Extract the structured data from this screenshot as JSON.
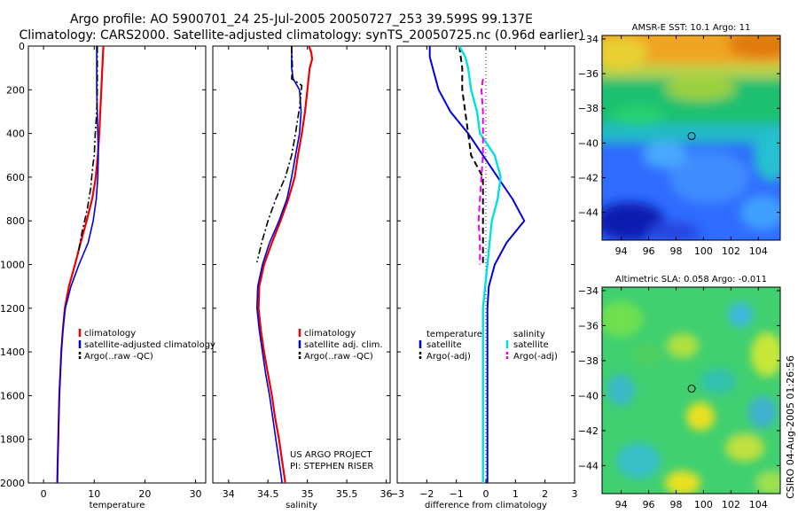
{
  "header": {
    "line1": "Argo profile: AO 5900701_24 25-Jul-2005 20050727_253 39.599S 99.137E",
    "line2": "Climatology: CARS2000. Satellite-adjusted climatology: synTS_20050725.nc (0.96d earlier)"
  },
  "credit": "CSIRO 04-Aug-2005 01:26:56",
  "colors": {
    "red": "#ee0000",
    "blue": "#0000dd",
    "black": "#000000",
    "cyan": "#00e0e0",
    "magenta": "#ee00ee"
  },
  "chart_data": [
    {
      "id": "temperature",
      "type": "line",
      "xlabel": "temperature",
      "xlim": [
        -3,
        32
      ],
      "ylim": [
        2000,
        0
      ],
      "xticks": [
        0,
        10,
        20,
        30
      ],
      "yticks": [
        0,
        200,
        400,
        600,
        800,
        1000,
        1200,
        1400,
        1600,
        1800,
        2000
      ],
      "series": [
        {
          "name": "climatology",
          "color": "#ee0000",
          "style": "solid",
          "width": 2.2,
          "points": [
            [
              11.8,
              0
            ],
            [
              11.7,
              50
            ],
            [
              11.6,
              100
            ],
            [
              11.4,
              200
            ],
            [
              11.2,
              300
            ],
            [
              11.0,
              400
            ],
            [
              10.7,
              500
            ],
            [
              10.3,
              600
            ],
            [
              9.6,
              700
            ],
            [
              8.5,
              800
            ],
            [
              7.3,
              900
            ],
            [
              6.2,
              1000
            ],
            [
              5.0,
              1100
            ],
            [
              4.2,
              1200
            ],
            [
              3.8,
              1300
            ],
            [
              3.5,
              1400
            ],
            [
              3.3,
              1500
            ],
            [
              3.1,
              1600
            ],
            [
              3.0,
              1700
            ],
            [
              2.9,
              1800
            ],
            [
              2.8,
              1900
            ],
            [
              2.7,
              2000
            ]
          ]
        },
        {
          "name": "satellite-adjusted climatology",
          "color": "#0000dd",
          "style": "solid",
          "width": 1.6,
          "points": [
            [
              10.5,
              0
            ],
            [
              10.5,
              100
            ],
            [
              10.5,
              200
            ],
            [
              10.6,
              300
            ],
            [
              10.7,
              400
            ],
            [
              10.8,
              500
            ],
            [
              10.7,
              600
            ],
            [
              10.4,
              700
            ],
            [
              9.8,
              800
            ],
            [
              8.8,
              900
            ],
            [
              7.0,
              1000
            ],
            [
              5.4,
              1100
            ],
            [
              4.3,
              1200
            ],
            [
              3.8,
              1300
            ],
            [
              3.5,
              1400
            ],
            [
              3.3,
              1500
            ],
            [
              3.1,
              1600
            ],
            [
              3.0,
              1700
            ],
            [
              2.9,
              1800
            ],
            [
              2.8,
              1900
            ],
            [
              2.7,
              2000
            ]
          ]
        },
        {
          "name": "Argo(..raw -QC)",
          "color": "#000000",
          "style": "dashdot",
          "width": 1.6,
          "points": [
            [
              10.6,
              0
            ],
            [
              10.6,
              100
            ],
            [
              10.6,
              200
            ],
            [
              10.5,
              300
            ],
            [
              10.2,
              400
            ],
            [
              10.0,
              500
            ],
            [
              9.7,
              550
            ],
            [
              9.3,
              650
            ],
            [
              8.6,
              750
            ],
            [
              7.6,
              850
            ],
            [
              6.8,
              950
            ]
          ]
        }
      ],
      "legend": [
        "climatology",
        "satellite-adjusted climatology",
        "Argo(..raw -QC)"
      ]
    },
    {
      "id": "salinity",
      "type": "line",
      "xlabel": "salinity",
      "xlim": [
        33.8,
        36.05
      ],
      "ylim": [
        2000,
        0
      ],
      "xticks": [
        34,
        34.5,
        35,
        35.5,
        36
      ],
      "series": [
        {
          "name": "climatology",
          "color": "#ee0000",
          "style": "solid",
          "width": 2.2,
          "points": [
            [
              35.02,
              0
            ],
            [
              35.05,
              30
            ],
            [
              35.06,
              60
            ],
            [
              35.03,
              100
            ],
            [
              35.0,
              200
            ],
            [
              34.97,
              300
            ],
            [
              34.93,
              400
            ],
            [
              34.88,
              500
            ],
            [
              34.84,
              600
            ],
            [
              34.76,
              700
            ],
            [
              34.66,
              800
            ],
            [
              34.55,
              900
            ],
            [
              34.45,
              1000
            ],
            [
              34.39,
              1100
            ],
            [
              34.38,
              1200
            ],
            [
              34.41,
              1300
            ],
            [
              34.45,
              1400
            ],
            [
              34.5,
              1500
            ],
            [
              34.55,
              1600
            ],
            [
              34.59,
              1700
            ],
            [
              34.64,
              1800
            ],
            [
              34.68,
              1900
            ],
            [
              34.72,
              2000
            ]
          ]
        },
        {
          "name": "satellite adj. clim.",
          "color": "#0000dd",
          "style": "solid",
          "width": 1.6,
          "points": [
            [
              34.8,
              0
            ],
            [
              34.8,
              100
            ],
            [
              34.82,
              150
            ],
            [
              34.9,
              200
            ],
            [
              34.92,
              300
            ],
            [
              34.9,
              400
            ],
            [
              34.85,
              500
            ],
            [
              34.8,
              600
            ],
            [
              34.74,
              700
            ],
            [
              34.64,
              800
            ],
            [
              34.52,
              900
            ],
            [
              34.43,
              1000
            ],
            [
              34.37,
              1100
            ],
            [
              34.36,
              1200
            ],
            [
              34.39,
              1300
            ],
            [
              34.43,
              1400
            ],
            [
              34.47,
              1500
            ],
            [
              34.52,
              1600
            ],
            [
              34.56,
              1700
            ],
            [
              34.6,
              1800
            ],
            [
              34.64,
              1900
            ],
            [
              34.68,
              2000
            ]
          ]
        },
        {
          "name": "Argo(..raw -QC)",
          "color": "#000000",
          "style": "dashdot",
          "width": 1.6,
          "points": [
            [
              34.8,
              0
            ],
            [
              34.81,
              100
            ],
            [
              34.8,
              150
            ],
            [
              34.93,
              180
            ],
            [
              34.9,
              280
            ],
            [
              34.85,
              400
            ],
            [
              34.8,
              500
            ],
            [
              34.72,
              600
            ],
            [
              34.6,
              700
            ],
            [
              34.5,
              800
            ],
            [
              34.42,
              900
            ],
            [
              34.36,
              990
            ]
          ]
        }
      ],
      "legend": [
        "climatology",
        "satellite adj. clim.",
        "Argo(..raw -QC)"
      ],
      "annotation": [
        "US ARGO PROJECT",
        "PI: STEPHEN RISER"
      ]
    },
    {
      "id": "difference",
      "type": "line",
      "xlabel": "difference from climatology",
      "xlim": [
        -3,
        3
      ],
      "ylim": [
        2000,
        0
      ],
      "xticks": [
        -3,
        -2,
        -1,
        0,
        1,
        2,
        3
      ],
      "series": [
        {
          "name": "temperature satellite",
          "color": "#0000dd",
          "style": "solid",
          "width": 2,
          "points": [
            [
              -1.9,
              0
            ],
            [
              -1.9,
              50
            ],
            [
              -1.8,
              100
            ],
            [
              -1.6,
              200
            ],
            [
              -1.2,
              300
            ],
            [
              -0.6,
              400
            ],
            [
              -0.1,
              500
            ],
            [
              0.4,
              600
            ],
            [
              0.9,
              700
            ],
            [
              1.3,
              800
            ],
            [
              0.7,
              900
            ],
            [
              0.3,
              1000
            ],
            [
              0.1,
              1100
            ],
            [
              0.05,
              1200
            ],
            [
              0.05,
              1300
            ],
            [
              0.05,
              1400
            ],
            [
              0.05,
              1500
            ],
            [
              0.05,
              1600
            ],
            [
              0.05,
              1700
            ],
            [
              0.05,
              1800
            ],
            [
              0.05,
              1900
            ],
            [
              0.05,
              2000
            ]
          ]
        },
        {
          "name": "temperature Argo(-adj)",
          "color": "#000000",
          "style": "dashed",
          "width": 2,
          "points": [
            [
              -0.9,
              0
            ],
            [
              -0.8,
              100
            ],
            [
              -0.8,
              200
            ],
            [
              -0.7,
              300
            ],
            [
              -0.6,
              400
            ],
            [
              -0.5,
              500
            ],
            [
              -0.3,
              550
            ],
            [
              -0.1,
              600
            ],
            [
              -0.1,
              700
            ],
            [
              -0.1,
              800
            ],
            [
              -0.1,
              900
            ],
            [
              -0.1,
              1000
            ]
          ]
        },
        {
          "name": "salinity satellite",
          "color": "#00e0e0",
          "style": "solid",
          "width": 2.4,
          "points": [
            [
              -0.9,
              0
            ],
            [
              -0.7,
              50
            ],
            [
              -0.6,
              100
            ],
            [
              -0.5,
              200
            ],
            [
              -0.3,
              300
            ],
            [
              -0.2,
              400
            ],
            [
              0.3,
              500
            ],
            [
              0.5,
              600
            ],
            [
              0.4,
              700
            ],
            [
              0.2,
              800
            ],
            [
              0.05,
              1000
            ],
            [
              -0.1,
              1200
            ],
            [
              -0.1,
              1400
            ],
            [
              -0.1,
              1600
            ],
            [
              -0.1,
              1800
            ],
            [
              -0.1,
              2000
            ]
          ]
        },
        {
          "name": "salinity Argo(-adj)",
          "color": "#ee00ee",
          "style": "dashed",
          "width": 2,
          "points": [
            [
              -0.1,
              150
            ],
            [
              -0.15,
              200
            ],
            [
              -0.1,
              300
            ],
            [
              -0.1,
              400
            ],
            [
              -0.1,
              500
            ],
            [
              -0.15,
              600
            ],
            [
              -0.2,
              700
            ],
            [
              -0.25,
              800
            ],
            [
              -0.2,
              900
            ],
            [
              -0.2,
              1000
            ]
          ]
        }
      ],
      "legend_left": {
        "title": "temperature",
        "items": [
          "satellite",
          "Argo(-adj)"
        ]
      },
      "legend_right": {
        "title": "salinity",
        "items": [
          "satellite",
          "Argo(-adj)"
        ]
      }
    },
    {
      "id": "sst-map",
      "type": "heatmap",
      "title": "AMSR-E SST: 10.1 Argo: 11",
      "xlim": [
        92.6,
        105.6
      ],
      "ylim": [
        -45.6,
        -33.8
      ],
      "xticks": [
        94,
        96,
        98,
        100,
        102,
        104
      ],
      "yticks": [
        -34,
        -36,
        -38,
        -40,
        -42,
        -44
      ],
      "marker": [
        99.137,
        -39.599
      ]
    },
    {
      "id": "sla-map",
      "type": "heatmap",
      "title": "Altimetric SLA: 0.058 Argo: -0.011",
      "xlim": [
        92.6,
        105.6
      ],
      "ylim": [
        -45.6,
        -33.8
      ],
      "xticks": [
        94,
        96,
        98,
        100,
        102,
        104
      ],
      "yticks": [
        -34,
        -36,
        -38,
        -40,
        -42,
        -44
      ],
      "marker": [
        99.137,
        -39.599
      ]
    }
  ]
}
